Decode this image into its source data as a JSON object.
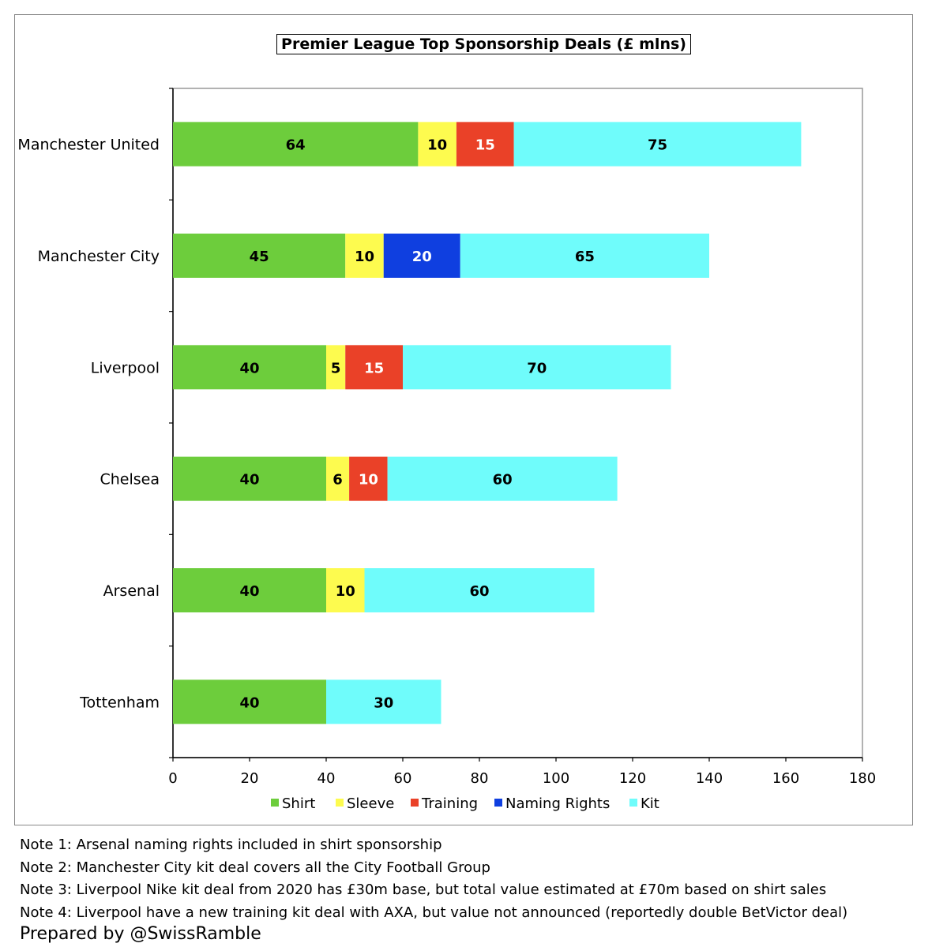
{
  "chart_data": {
    "type": "bar",
    "orientation": "horizontal",
    "stacked": true,
    "title": "Premier League Top Sponsorship Deals (£ mlns)",
    "categories": [
      "Manchester United",
      "Manchester City",
      "Liverpool",
      "Chelsea",
      "Arsenal",
      "Tottenham"
    ],
    "series": [
      {
        "name": "Shirt",
        "color": "#6dcd3c",
        "label_color": "#000000",
        "values": [
          64,
          45,
          40,
          40,
          40,
          40
        ]
      },
      {
        "name": "Sleeve",
        "color": "#fdfb4f",
        "label_color": "#000000",
        "values": [
          10,
          10,
          5,
          6,
          10,
          null
        ]
      },
      {
        "name": "Training",
        "color": "#ea4128",
        "label_color": "#ffffff",
        "values": [
          15,
          null,
          15,
          10,
          null,
          null
        ]
      },
      {
        "name": "Naming Rights",
        "color": "#0f3fe0",
        "label_color": "#ffffff",
        "values": [
          null,
          20,
          null,
          null,
          null,
          null
        ]
      },
      {
        "name": "Kit",
        "color": "#6ffcfb",
        "label_color": "#000000",
        "values": [
          75,
          65,
          70,
          60,
          60,
          30
        ]
      }
    ],
    "xlim": [
      0,
      180
    ],
    "xticks": [
      0,
      20,
      40,
      60,
      80,
      100,
      120,
      140,
      160,
      180
    ],
    "grid": false,
    "legend_position": "bottom"
  },
  "notes": [
    "Note 1: Arsenal naming rights included in shirt sponsorship",
    "Note 2: Manchester City kit deal covers all the City Football Group",
    "Note 3: Liverpool Nike kit deal from 2020 has £30m base, but total value estimated at £70m based on shirt sales",
    "Note 4: Liverpool have a new training kit deal with AXA, but value not announced (reportedly double BetVictor deal)"
  ],
  "credit": "Prepared by @SwissRamble"
}
